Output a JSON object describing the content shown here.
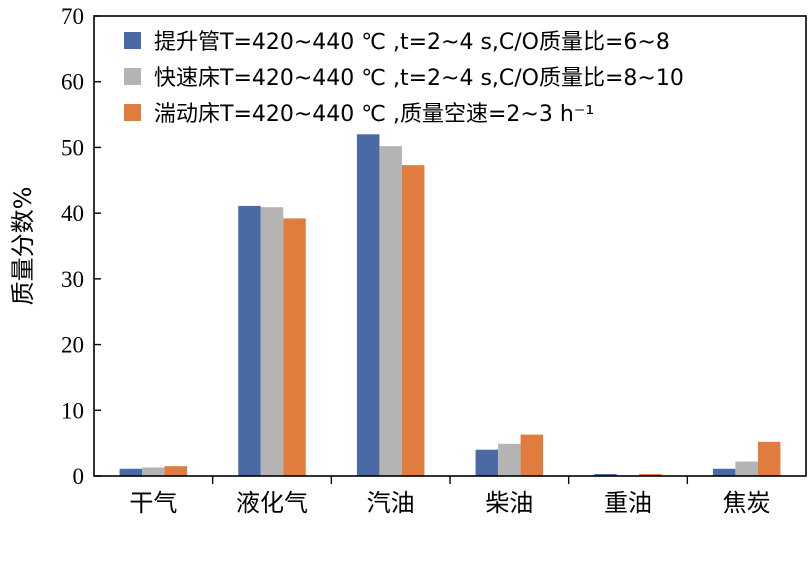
{
  "chart_data": {
    "type": "bar",
    "categories": [
      "干气",
      "液化气",
      "汽油",
      "柴油",
      "重油",
      "焦炭"
    ],
    "ylabel": "质量分数%",
    "xlabel": "",
    "title": "",
    "ylim": [
      0,
      70
    ],
    "yticks": [
      0,
      10,
      20,
      30,
      40,
      50,
      60,
      70
    ],
    "grid": false,
    "legend_position": "top-right",
    "series": [
      {
        "name": "提升管T=420~440 ℃ ,t=2~4 s,C/O质量比=6~8",
        "color": "#4a6aa5",
        "values": [
          1.1,
          41.1,
          52.0,
          4.0,
          0.3,
          1.1
        ]
      },
      {
        "name": "快速床T=420~440 ℃ ,t=2~4 s,C/O质量比=8~10",
        "color": "#b4b4b4",
        "values": [
          1.3,
          40.9,
          50.2,
          4.9,
          0.1,
          2.2
        ]
      },
      {
        "name": "湍动床T=420~440 ℃ ,质量空速=2~3 h⁻¹",
        "color": "#e07c3e",
        "values": [
          1.5,
          39.2,
          47.3,
          6.3,
          0.3,
          5.2
        ]
      }
    ]
  }
}
